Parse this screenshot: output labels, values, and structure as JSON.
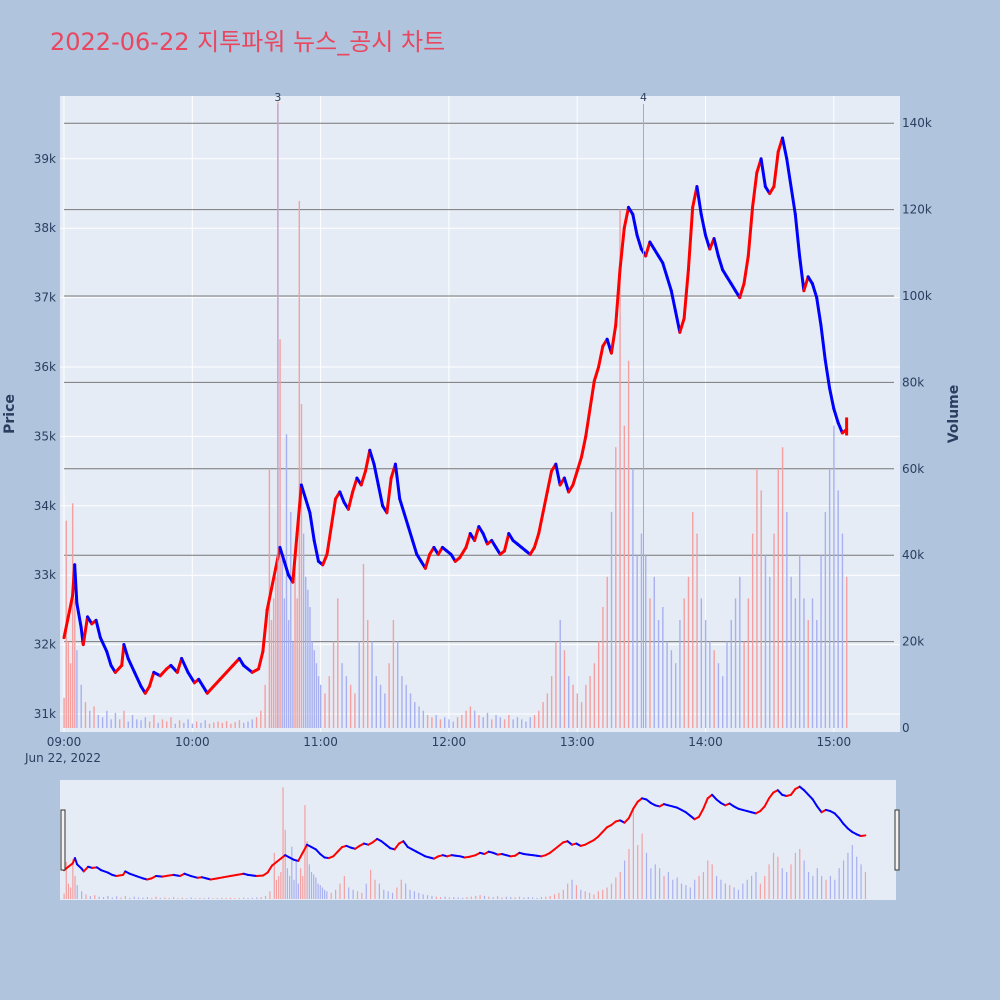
{
  "chart_data": {
    "type": "candlestick",
    "title": "2022-06-22 지투파워 뉴스_공시 차트",
    "date_label": "Jun 22, 2022",
    "ylabel": "Price",
    "y2label": "Volume",
    "price_ticks": [
      "31k",
      "32k",
      "33k",
      "34k",
      "35k",
      "36k",
      "37k",
      "38k",
      "39k"
    ],
    "price_tick_values": [
      31000,
      32000,
      33000,
      34000,
      35000,
      36000,
      37000,
      38000,
      39000
    ],
    "volume_ticks": [
      "0",
      "20k",
      "40k",
      "60k",
      "80k",
      "100k",
      "120k",
      "140k"
    ],
    "volume_tick_values": [
      0,
      20000,
      40000,
      60000,
      80000,
      100000,
      120000,
      140000
    ],
    "time_ticks": [
      "09:00",
      "10:00",
      "11:00",
      "12:00",
      "13:00",
      "14:00",
      "15:00"
    ],
    "time_tick_minutes": [
      0,
      60,
      120,
      180,
      240,
      300,
      360
    ],
    "price_range": [
      30750,
      39950
    ],
    "volume_range": [
      0,
      146000
    ],
    "time_range_minutes": [
      0,
      390
    ],
    "annotations": [
      {
        "label": "3",
        "minute": 100
      },
      {
        "label": "4",
        "minute": 271
      }
    ],
    "up_color": "#ff0000",
    "down_color": "#0000ff",
    "price_path": [
      [
        0,
        32100
      ],
      [
        2,
        32400
      ],
      [
        4,
        32700
      ],
      [
        5,
        33150
      ],
      [
        6,
        32600
      ],
      [
        8,
        32250
      ],
      [
        9,
        32000
      ],
      [
        11,
        32400
      ],
      [
        13,
        32300
      ],
      [
        15,
        32350
      ],
      [
        17,
        32100
      ],
      [
        20,
        31900
      ],
      [
        22,
        31700
      ],
      [
        24,
        31600
      ],
      [
        27,
        31700
      ],
      [
        28,
        32000
      ],
      [
        30,
        31800
      ],
      [
        33,
        31600
      ],
      [
        36,
        31400
      ],
      [
        38,
        31300
      ],
      [
        40,
        31400
      ],
      [
        42,
        31600
      ],
      [
        45,
        31550
      ],
      [
        48,
        31650
      ],
      [
        50,
        31700
      ],
      [
        53,
        31600
      ],
      [
        55,
        31800
      ],
      [
        58,
        31600
      ],
      [
        61,
        31450
      ],
      [
        63,
        31500
      ],
      [
        65,
        31400
      ],
      [
        67,
        31300
      ],
      [
        70,
        31400
      ],
      [
        73,
        31500
      ],
      [
        76,
        31600
      ],
      [
        79,
        31700
      ],
      [
        82,
        31800
      ],
      [
        84,
        31700
      ],
      [
        88,
        31600
      ],
      [
        91,
        31650
      ],
      [
        93,
        31900
      ],
      [
        95,
        32500
      ],
      [
        97,
        32800
      ],
      [
        99,
        33100
      ],
      [
        101,
        33400
      ],
      [
        103,
        33200
      ],
      [
        105,
        33000
      ],
      [
        107,
        32900
      ],
      [
        109,
        33600
      ],
      [
        111,
        34300
      ],
      [
        113,
        34100
      ],
      [
        115,
        33900
      ],
      [
        117,
        33500
      ],
      [
        119,
        33200
      ],
      [
        121,
        33150
      ],
      [
        123,
        33300
      ],
      [
        125,
        33700
      ],
      [
        127,
        34100
      ],
      [
        129,
        34200
      ],
      [
        131,
        34050
      ],
      [
        133,
        33950
      ],
      [
        135,
        34200
      ],
      [
        137,
        34400
      ],
      [
        139,
        34300
      ],
      [
        141,
        34500
      ],
      [
        143,
        34800
      ],
      [
        145,
        34600
      ],
      [
        147,
        34300
      ],
      [
        149,
        34000
      ],
      [
        151,
        33900
      ],
      [
        153,
        34400
      ],
      [
        155,
        34600
      ],
      [
        157,
        34100
      ],
      [
        159,
        33900
      ],
      [
        161,
        33700
      ],
      [
        163,
        33500
      ],
      [
        165,
        33300
      ],
      [
        167,
        33200
      ],
      [
        169,
        33100
      ],
      [
        171,
        33300
      ],
      [
        173,
        33400
      ],
      [
        175,
        33300
      ],
      [
        177,
        33400
      ],
      [
        179,
        33350
      ],
      [
        181,
        33300
      ],
      [
        183,
        33200
      ],
      [
        185,
        33250
      ],
      [
        188,
        33400
      ],
      [
        190,
        33600
      ],
      [
        192,
        33500
      ],
      [
        194,
        33700
      ],
      [
        196,
        33600
      ],
      [
        198,
        33450
      ],
      [
        200,
        33500
      ],
      [
        202,
        33400
      ],
      [
        204,
        33300
      ],
      [
        206,
        33350
      ],
      [
        208,
        33600
      ],
      [
        210,
        33500
      ],
      [
        212,
        33450
      ],
      [
        214,
        33400
      ],
      [
        216,
        33350
      ],
      [
        218,
        33300
      ],
      [
        220,
        33400
      ],
      [
        222,
        33600
      ],
      [
        224,
        33900
      ],
      [
        226,
        34200
      ],
      [
        228,
        34500
      ],
      [
        230,
        34600
      ],
      [
        232,
        34300
      ],
      [
        234,
        34400
      ],
      [
        236,
        34200
      ],
      [
        238,
        34300
      ],
      [
        240,
        34500
      ],
      [
        242,
        34700
      ],
      [
        244,
        35000
      ],
      [
        246,
        35400
      ],
      [
        248,
        35800
      ],
      [
        250,
        36000
      ],
      [
        252,
        36300
      ],
      [
        254,
        36400
      ],
      [
        256,
        36200
      ],
      [
        258,
        36600
      ],
      [
        260,
        37400
      ],
      [
        262,
        38000
      ],
      [
        264,
        38300
      ],
      [
        266,
        38200
      ],
      [
        268,
        37900
      ],
      [
        270,
        37700
      ],
      [
        272,
        37600
      ],
      [
        274,
        37800
      ],
      [
        276,
        37700
      ],
      [
        278,
        37600
      ],
      [
        280,
        37500
      ],
      [
        282,
        37300
      ],
      [
        284,
        37100
      ],
      [
        286,
        36800
      ],
      [
        288,
        36500
      ],
      [
        290,
        36700
      ],
      [
        292,
        37400
      ],
      [
        294,
        38300
      ],
      [
        296,
        38600
      ],
      [
        298,
        38200
      ],
      [
        300,
        37900
      ],
      [
        302,
        37700
      ],
      [
        304,
        37850
      ],
      [
        306,
        37600
      ],
      [
        308,
        37400
      ],
      [
        310,
        37300
      ],
      [
        312,
        37200
      ],
      [
        314,
        37100
      ],
      [
        316,
        37000
      ],
      [
        318,
        37200
      ],
      [
        320,
        37600
      ],
      [
        322,
        38300
      ],
      [
        324,
        38800
      ],
      [
        326,
        39000
      ],
      [
        328,
        38600
      ],
      [
        330,
        38500
      ],
      [
        332,
        38600
      ],
      [
        334,
        39100
      ],
      [
        336,
        39300
      ],
      [
        338,
        39000
      ],
      [
        340,
        38600
      ],
      [
        342,
        38200
      ],
      [
        344,
        37600
      ],
      [
        346,
        37100
      ],
      [
        348,
        37300
      ],
      [
        350,
        37200
      ],
      [
        352,
        37000
      ],
      [
        354,
        36600
      ],
      [
        356,
        36100
      ],
      [
        358,
        35700
      ],
      [
        360,
        35400
      ],
      [
        362,
        35200
      ],
      [
        364,
        35050
      ],
      [
        366,
        35100
      ]
    ],
    "volume_bars": [
      [
        0,
        7000
      ],
      [
        1,
        48000
      ],
      [
        2,
        20000
      ],
      [
        3,
        15000
      ],
      [
        4,
        52000
      ],
      [
        5,
        30000
      ],
      [
        6,
        18000
      ],
      [
        8,
        10000
      ],
      [
        10,
        6000
      ],
      [
        12,
        4000
      ],
      [
        14,
        5000
      ],
      [
        16,
        3000
      ],
      [
        18,
        2500
      ],
      [
        20,
        4000
      ],
      [
        22,
        2000
      ],
      [
        24,
        3500
      ],
      [
        26,
        2000
      ],
      [
        28,
        4000
      ],
      [
        30,
        1500
      ],
      [
        32,
        3000
      ],
      [
        34,
        2000
      ],
      [
        36,
        1800
      ],
      [
        38,
        2500
      ],
      [
        40,
        1500
      ],
      [
        42,
        3000
      ],
      [
        44,
        1200
      ],
      [
        46,
        2000
      ],
      [
        48,
        1500
      ],
      [
        50,
        2500
      ],
      [
        52,
        1000
      ],
      [
        54,
        1800
      ],
      [
        56,
        1200
      ],
      [
        58,
        2000
      ],
      [
        60,
        1000
      ],
      [
        62,
        1500
      ],
      [
        64,
        1200
      ],
      [
        66,
        1800
      ],
      [
        68,
        1000
      ],
      [
        70,
        1300
      ],
      [
        72,
        1500
      ],
      [
        74,
        1200
      ],
      [
        76,
        1600
      ],
      [
        78,
        1000
      ],
      [
        80,
        1400
      ],
      [
        82,
        1800
      ],
      [
        84,
        1200
      ],
      [
        86,
        1500
      ],
      [
        88,
        2000
      ],
      [
        90,
        2500
      ],
      [
        92,
        4000
      ],
      [
        94,
        10000
      ],
      [
        96,
        60000
      ],
      [
        97,
        25000
      ],
      [
        98,
        30000
      ],
      [
        99,
        35000
      ],
      [
        100,
        145000
      ],
      [
        101,
        90000
      ],
      [
        102,
        40000
      ],
      [
        103,
        30000
      ],
      [
        104,
        68000
      ],
      [
        105,
        25000
      ],
      [
        106,
        50000
      ],
      [
        107,
        20000
      ],
      [
        108,
        40000
      ],
      [
        109,
        30000
      ],
      [
        110,
        122000
      ],
      [
        111,
        75000
      ],
      [
        112,
        45000
      ],
      [
        113,
        35000
      ],
      [
        114,
        32000
      ],
      [
        115,
        28000
      ],
      [
        116,
        20000
      ],
      [
        117,
        18000
      ],
      [
        118,
        15000
      ],
      [
        119,
        12000
      ],
      [
        120,
        10000
      ],
      [
        122,
        8000
      ],
      [
        124,
        12000
      ],
      [
        126,
        20000
      ],
      [
        128,
        30000
      ],
      [
        130,
        15000
      ],
      [
        132,
        12000
      ],
      [
        134,
        10000
      ],
      [
        136,
        8000
      ],
      [
        138,
        20000
      ],
      [
        140,
        38000
      ],
      [
        142,
        25000
      ],
      [
        144,
        20000
      ],
      [
        146,
        12000
      ],
      [
        148,
        10000
      ],
      [
        150,
        8000
      ],
      [
        152,
        15000
      ],
      [
        154,
        25000
      ],
      [
        156,
        20000
      ],
      [
        158,
        12000
      ],
      [
        160,
        10000
      ],
      [
        162,
        8000
      ],
      [
        164,
        6000
      ],
      [
        166,
        5000
      ],
      [
        168,
        4000
      ],
      [
        170,
        3000
      ],
      [
        172,
        2500
      ],
      [
        174,
        3000
      ],
      [
        176,
        2000
      ],
      [
        178,
        2500
      ],
      [
        180,
        2000
      ],
      [
        182,
        1500
      ],
      [
        184,
        2500
      ],
      [
        186,
        3000
      ],
      [
        188,
        4000
      ],
      [
        190,
        5000
      ],
      [
        192,
        4000
      ],
      [
        194,
        3000
      ],
      [
        196,
        2500
      ],
      [
        198,
        3500
      ],
      [
        200,
        2000
      ],
      [
        202,
        3000
      ],
      [
        204,
        2500
      ],
      [
        206,
        2000
      ],
      [
        208,
        3000
      ],
      [
        210,
        2000
      ],
      [
        212,
        2500
      ],
      [
        214,
        2000
      ],
      [
        216,
        1500
      ],
      [
        218,
        2500
      ],
      [
        220,
        3000
      ],
      [
        222,
        4000
      ],
      [
        224,
        6000
      ],
      [
        226,
        8000
      ],
      [
        228,
        12000
      ],
      [
        230,
        20000
      ],
      [
        232,
        25000
      ],
      [
        234,
        18000
      ],
      [
        236,
        12000
      ],
      [
        238,
        10000
      ],
      [
        240,
        8000
      ],
      [
        242,
        6000
      ],
      [
        244,
        10000
      ],
      [
        246,
        12000
      ],
      [
        248,
        15000
      ],
      [
        250,
        20000
      ],
      [
        252,
        28000
      ],
      [
        254,
        35000
      ],
      [
        256,
        50000
      ],
      [
        258,
        65000
      ],
      [
        260,
        120000
      ],
      [
        262,
        70000
      ],
      [
        264,
        85000
      ],
      [
        266,
        60000
      ],
      [
        268,
        40000
      ],
      [
        270,
        45000
      ],
      [
        272,
        40000
      ],
      [
        274,
        30000
      ],
      [
        276,
        35000
      ],
      [
        278,
        25000
      ],
      [
        280,
        28000
      ],
      [
        282,
        20000
      ],
      [
        284,
        18000
      ],
      [
        286,
        15000
      ],
      [
        288,
        25000
      ],
      [
        290,
        30000
      ],
      [
        292,
        35000
      ],
      [
        294,
        50000
      ],
      [
        296,
        45000
      ],
      [
        298,
        30000
      ],
      [
        300,
        25000
      ],
      [
        302,
        20000
      ],
      [
        304,
        18000
      ],
      [
        306,
        15000
      ],
      [
        308,
        12000
      ],
      [
        310,
        20000
      ],
      [
        312,
        25000
      ],
      [
        314,
        30000
      ],
      [
        316,
        35000
      ],
      [
        318,
        20000
      ],
      [
        320,
        30000
      ],
      [
        322,
        45000
      ],
      [
        324,
        60000
      ],
      [
        326,
        55000
      ],
      [
        328,
        40000
      ],
      [
        330,
        35000
      ],
      [
        332,
        45000
      ],
      [
        334,
        60000
      ],
      [
        336,
        65000
      ],
      [
        338,
        50000
      ],
      [
        340,
        35000
      ],
      [
        342,
        30000
      ],
      [
        344,
        40000
      ],
      [
        346,
        30000
      ],
      [
        348,
        25000
      ],
      [
        350,
        30000
      ],
      [
        352,
        25000
      ],
      [
        354,
        40000
      ],
      [
        356,
        50000
      ],
      [
        358,
        60000
      ],
      [
        360,
        70000
      ],
      [
        362,
        55000
      ],
      [
        364,
        45000
      ],
      [
        366,
        35000
      ]
    ]
  }
}
